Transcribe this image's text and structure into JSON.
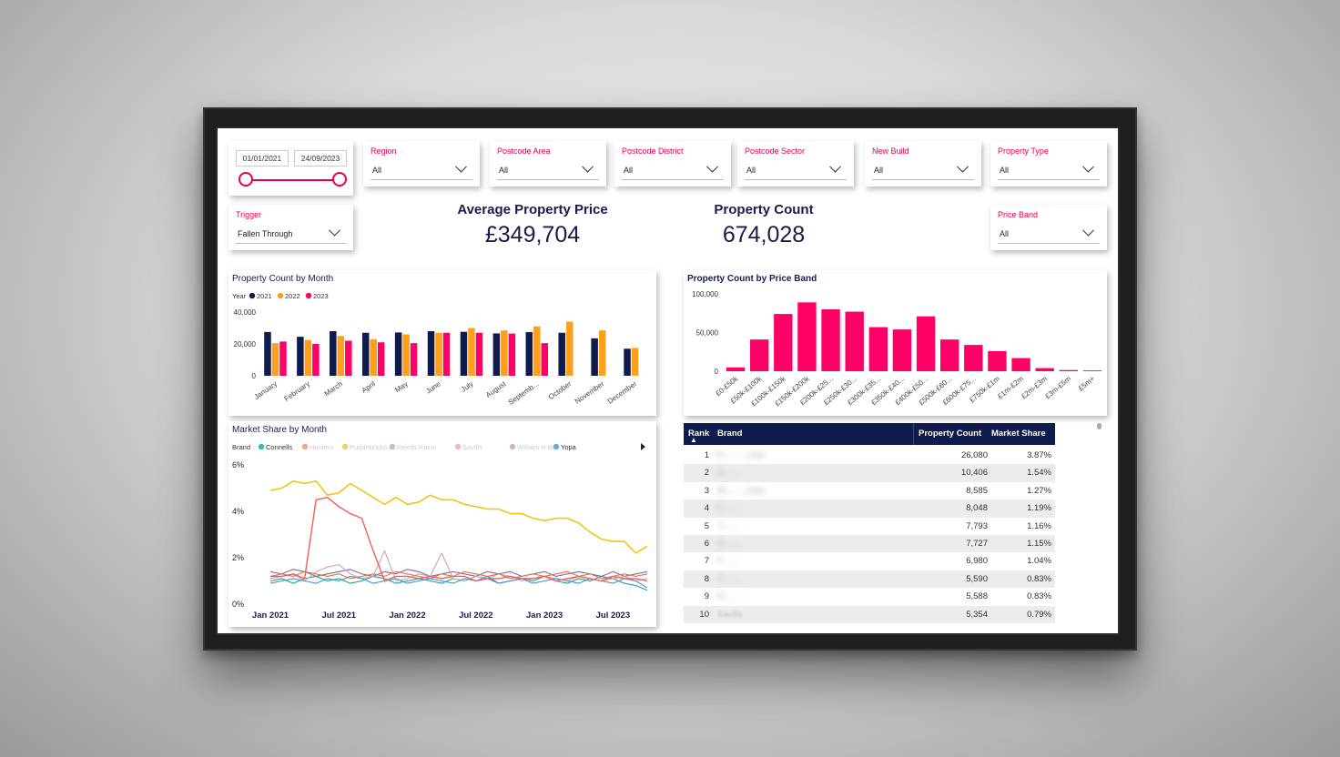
{
  "date_range": {
    "start": "01/01/2021",
    "end": "24/09/2023"
  },
  "slicers": [
    {
      "title": "Region",
      "value": "All"
    },
    {
      "title": "Postcode Area",
      "value": "All"
    },
    {
      "title": "Postcode District",
      "value": "All"
    },
    {
      "title": "Postcode Sector",
      "value": "All"
    },
    {
      "title": "New Build",
      "value": "All"
    },
    {
      "title": "Property Type",
      "value": "All"
    }
  ],
  "trigger": {
    "title": "Trigger",
    "value": "Fallen Through"
  },
  "price_band": {
    "title": "Price Band",
    "value": "All"
  },
  "kpis": {
    "avg_price": {
      "title": "Average Property Price",
      "value": "£349,704"
    },
    "count": {
      "title": "Property Count",
      "value": "674,028"
    }
  },
  "colors": {
    "navy": "#0f1a4d",
    "orange": "#ff9f1c",
    "pink": "#ff0066",
    "accent": "#e6004c"
  },
  "chart_data": [
    {
      "type": "bar",
      "title": "Property Count by Month",
      "legend_title": "Year",
      "categories": [
        "January",
        "February",
        "March",
        "April",
        "May",
        "June",
        "July",
        "August",
        "Septemb...",
        "October",
        "November",
        "December"
      ],
      "series": [
        {
          "name": "2021",
          "color": "#0f1a4d",
          "values": [
            27500,
            24500,
            28000,
            27000,
            27200,
            28000,
            27600,
            26600,
            27400,
            27000,
            23500,
            17000
          ]
        },
        {
          "name": "2022",
          "color": "#ff9f1c",
          "values": [
            20500,
            22500,
            25000,
            23000,
            26000,
            27000,
            30000,
            28500,
            31000,
            34000,
            28500,
            17500
          ]
        },
        {
          "name": "2023",
          "color": "#ff0066",
          "values": [
            21500,
            20000,
            22000,
            21000,
            20500,
            27000,
            27000,
            26500,
            20500,
            null,
            null,
            null
          ]
        }
      ],
      "yticks": [
        "40,000",
        "20,000",
        "0"
      ],
      "ylim": [
        0,
        40000
      ]
    },
    {
      "type": "bar",
      "title": "Property Count by Price Band",
      "categories": [
        "£0-£50k",
        "£50k-£100k",
        "£100k-£150k",
        "£150k-£200k",
        "£200k-£25...",
        "£250k-£30...",
        "£300k-£35...",
        "£350k-£40...",
        "£400k-£50...",
        "£500k-£60...",
        "£600k-£75...",
        "£750k-£1m",
        "£1m-£2m",
        "£2m-£3m",
        "£3m-£5m",
        "£5m+"
      ],
      "values": [
        5000,
        41000,
        74000,
        89000,
        80000,
        77000,
        57000,
        54000,
        71000,
        41000,
        34000,
        26000,
        17000,
        4000,
        1500,
        1000
      ],
      "yticks": [
        "100,000",
        "50,000",
        "0"
      ],
      "ylim": [
        0,
        100000
      ],
      "color": "#ff0066"
    },
    {
      "type": "line",
      "title": "Market Share by Month",
      "legend_title": "Brand",
      "legend": [
        {
          "name": "Connells",
          "color": "#2ebfb3"
        },
        {
          "name": "Hunters",
          "color": "#f4a582"
        },
        {
          "name": "Purplebricks.c...",
          "color": "#f2d06b"
        },
        {
          "name": "Reeds Rains",
          "color": "#b3c6e0"
        },
        {
          "name": "Savills",
          "color": "#f7b6b6"
        },
        {
          "name": "William H Br...",
          "color": "#c9b3d6"
        },
        {
          "name": "Yopa",
          "color": "#6fa8dc"
        }
      ],
      "x_ticks": [
        "Jan 2021",
        "Jul 2021",
        "Jan 2022",
        "Jul 2022",
        "Jan 2023",
        "Jul 2023"
      ],
      "y_ticks": [
        "6%",
        "4%",
        "2%",
        "0%"
      ],
      "ylim": [
        0,
        6
      ],
      "series": [
        {
          "name": "Purplebricks.c...",
          "color": "#f2c417",
          "values": [
            4.9,
            5.0,
            5.3,
            5.2,
            5.3,
            4.7,
            4.8,
            5.2,
            4.9,
            4.6,
            4.3,
            4.6,
            4.3,
            4.4,
            4.7,
            4.5,
            4.5,
            4.3,
            4.2,
            4.1,
            4.1,
            3.9,
            3.9,
            3.7,
            3.6,
            3.7,
            3.7,
            3.5,
            3.1,
            2.8,
            2.7,
            2.7,
            2.2,
            2.5
          ]
        },
        {
          "name": "Hunters",
          "color": "#f25c5c",
          "values": [
            1.2,
            1.2,
            1.3,
            1.1,
            4.5,
            4.6,
            4.2,
            3.9,
            3.7,
            2.3,
            1.0,
            1.2,
            1.2,
            1.1,
            1.2,
            1.1,
            1.2,
            1.2,
            1.0,
            1.1,
            1.1,
            1.2,
            1.1,
            1.1,
            1.2,
            1.0,
            1.1,
            1.2,
            1.1,
            1.0,
            1.2,
            1.1,
            1.1,
            1.0
          ]
        },
        {
          "name": "Connells",
          "color": "#1f9e9e",
          "values": [
            1.0,
            1.1,
            0.9,
            1.1,
            1.2,
            1.0,
            1.1,
            0.9,
            1.0,
            1.2,
            1.1,
            0.9,
            1.0,
            1.1,
            1.0,
            0.9,
            1.1,
            1.0,
            1.2,
            1.1,
            0.9,
            1.0,
            1.1,
            1.0,
            1.2,
            1.0,
            0.9,
            1.1,
            1.0,
            1.2,
            1.1,
            0.9,
            0.8,
            0.6
          ]
        },
        {
          "name": "Reeds Rains",
          "color": "#7f6aa6",
          "values": [
            1.4,
            1.3,
            1.5,
            1.4,
            1.2,
            1.3,
            1.4,
            1.5,
            1.3,
            1.2,
            1.4,
            1.3,
            1.5,
            1.4,
            1.2,
            1.3,
            1.4,
            1.3,
            1.2,
            1.4,
            1.3,
            1.4,
            1.2,
            1.3,
            1.4,
            1.2,
            1.3,
            1.4,
            1.3,
            1.2,
            1.4,
            1.2,
            1.3,
            1.4
          ]
        },
        {
          "name": "Savills",
          "color": "#c9a8a8",
          "values": [
            1.1,
            1.2,
            1.3,
            1.0,
            1.4,
            1.6,
            1.7,
            1.3,
            1.1,
            1.2,
            2.3,
            1.0,
            1.1,
            1.3,
            1.2,
            2.2,
            1.1,
            1.0,
            1.2,
            1.1,
            1.3,
            1.2,
            1.0,
            1.1,
            1.2,
            1.1,
            1.0,
            1.2,
            1.1,
            1.0,
            1.1,
            1.2,
            1.0,
            1.1
          ]
        },
        {
          "name": "Yopa",
          "color": "#4a90c6",
          "values": [
            0.9,
            1.0,
            1.1,
            1.0,
            0.9,
            1.1,
            1.0,
            1.2,
            1.1,
            0.9,
            1.0,
            1.1,
            0.9,
            1.0,
            1.1,
            1.0,
            0.9,
            1.1,
            1.0,
            1.2,
            0.9,
            1.0,
            1.1,
            0.9,
            1.0,
            1.1,
            1.0,
            0.9,
            1.1,
            1.0,
            0.9,
            1.1,
            1.0,
            0.7
          ]
        },
        {
          "name": "William H Br...",
          "color": "#e0783c",
          "values": [
            1.2,
            1.3,
            1.2,
            1.4,
            1.3,
            1.2,
            1.3,
            1.1,
            1.2,
            1.3,
            1.2,
            1.4,
            1.3,
            1.2,
            1.1,
            1.3,
            1.2,
            1.4,
            1.3,
            1.2,
            1.3,
            1.1,
            1.2,
            1.3,
            1.2,
            1.3,
            1.4,
            1.2,
            1.3,
            1.1,
            1.2,
            1.3,
            1.2,
            1.3
          ]
        }
      ]
    }
  ],
  "brand_table": {
    "columns": [
      "Rank",
      "Brand",
      "Property Count",
      "Market Share"
    ],
    "rows": [
      {
        "rank": "1",
        "brand": "P...........com",
        "count": "26,080",
        "share": "3.87%"
      },
      {
        "rank": "2",
        "brand": "H.......",
        "count": "10,406",
        "share": "1.54%"
      },
      {
        "rank": "3",
        "brand": "W.........rown",
        "count": "8,585",
        "share": "1.27%"
      },
      {
        "rank": "4",
        "brand": "C........",
        "count": "8,048",
        "share": "1.19%"
      },
      {
        "rank": "5",
        "brand": "Y........",
        "count": "7,793",
        "share": "1.16%"
      },
      {
        "rank": "6",
        "brand": "S........",
        "count": "7,727",
        "share": "1.15%"
      },
      {
        "rank": "7",
        "brand": "F........",
        "count": "6,980",
        "share": "1.04%"
      },
      {
        "rank": "8",
        "brand": "Y........",
        "count": "5,590",
        "share": "0.83%"
      },
      {
        "rank": "9",
        "brand": "R........",
        "count": "5,588",
        "share": "0.83%"
      },
      {
        "rank": "10",
        "brand": "Savills",
        "count": "5,354",
        "share": "0.79%"
      }
    ]
  }
}
